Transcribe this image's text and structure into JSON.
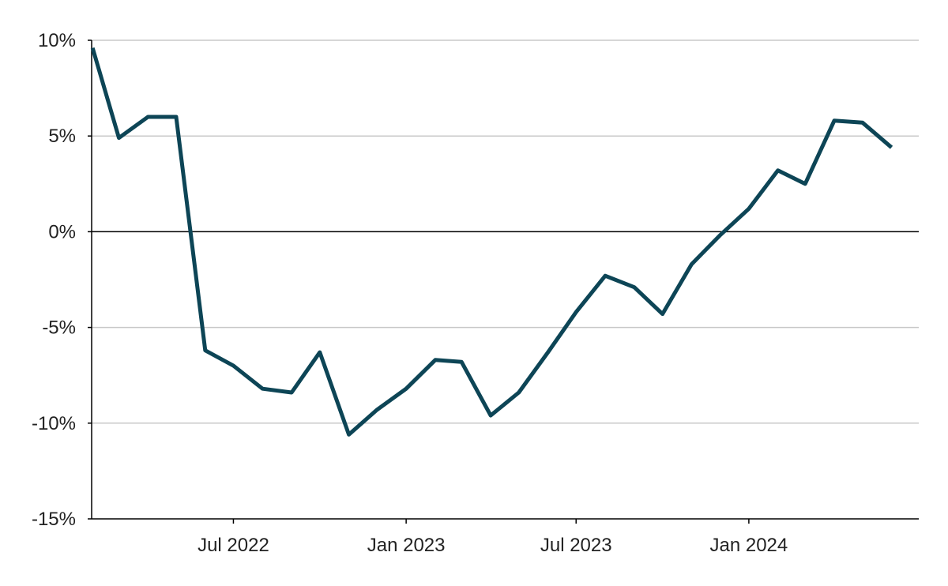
{
  "chart_data": {
    "type": "line",
    "title": "",
    "xlabel": "",
    "ylabel": "",
    "y_unit": "%",
    "ylim": [
      -15,
      10
    ],
    "y_ticks": [
      10,
      5,
      0,
      -5,
      -10,
      -15
    ],
    "y_tick_labels": [
      "10%",
      "5%",
      "0%",
      "-5%",
      "-10%",
      "-15%"
    ],
    "x_range": [
      "2022-01-31",
      "2024-06-30"
    ],
    "x_ticks": [
      "2022-07-01",
      "2023-01-01",
      "2023-07-01",
      "2024-01-01"
    ],
    "x_tick_labels": [
      "Jul 2022",
      "Jan 2023",
      "Jul 2023",
      "Jan 2024"
    ],
    "grid": "horizontal",
    "legend": "none",
    "series": [
      {
        "color": "#0d4556",
        "points": [
          {
            "x": "2022-02-01",
            "y": 9.6
          },
          {
            "x": "2022-03-01",
            "y": 4.9
          },
          {
            "x": "2022-04-01",
            "y": 6.0
          },
          {
            "x": "2022-05-01",
            "y": 6.0
          },
          {
            "x": "2022-06-01",
            "y": -6.2
          },
          {
            "x": "2022-07-01",
            "y": -7.0
          },
          {
            "x": "2022-08-01",
            "y": -8.2
          },
          {
            "x": "2022-09-01",
            "y": -8.4
          },
          {
            "x": "2022-10-01",
            "y": -6.3
          },
          {
            "x": "2022-11-01",
            "y": -10.6
          },
          {
            "x": "2022-12-01",
            "y": -9.3
          },
          {
            "x": "2023-01-01",
            "y": -8.2
          },
          {
            "x": "2023-02-01",
            "y": -6.7
          },
          {
            "x": "2023-03-01",
            "y": -6.8
          },
          {
            "x": "2023-04-01",
            "y": -9.6
          },
          {
            "x": "2023-05-01",
            "y": -8.4
          },
          {
            "x": "2023-06-01",
            "y": -6.3
          },
          {
            "x": "2023-07-01",
            "y": -4.2
          },
          {
            "x": "2023-08-01",
            "y": -2.3
          },
          {
            "x": "2023-09-01",
            "y": -2.9
          },
          {
            "x": "2023-10-01",
            "y": -4.3
          },
          {
            "x": "2023-11-01",
            "y": -1.7
          },
          {
            "x": "2023-12-01",
            "y": -0.2
          },
          {
            "x": "2024-01-01",
            "y": 1.2
          },
          {
            "x": "2024-02-01",
            "y": 3.2
          },
          {
            "x": "2024-03-01",
            "y": 2.5
          },
          {
            "x": "2024-04-01",
            "y": 5.8
          },
          {
            "x": "2024-05-01",
            "y": 5.7
          },
          {
            "x": "2024-06-01",
            "y": 4.4
          }
        ]
      }
    ]
  }
}
